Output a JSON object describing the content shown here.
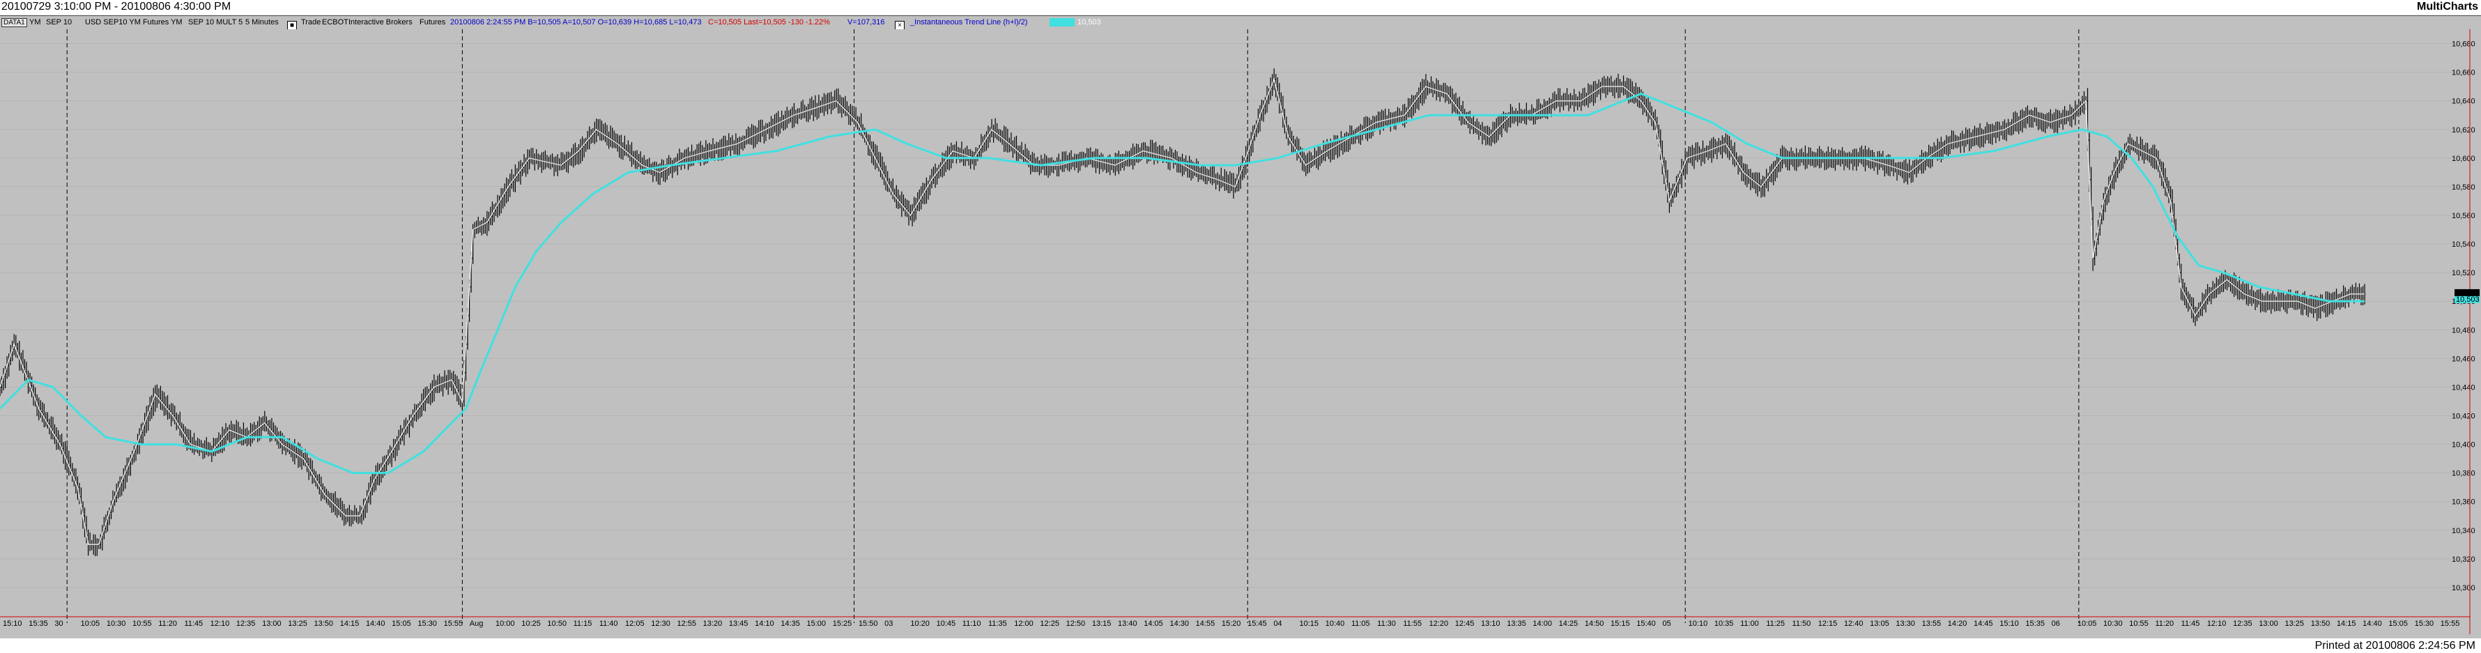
{
  "window": {
    "title": "20100729 3:10:00 PM - 20100806 4:30:00 PM",
    "brand": "MultiCharts",
    "printed": "Printed at 20100806 2:24:56 PM"
  },
  "infobar": {
    "symbol_box": "DATA1",
    "sym": "YM",
    "contract": "SEP 10",
    "desc": "USD SEP10 YM Futures YM",
    "contract2": "SEP 10 MULT 5",
    "interval": "5 Minutes",
    "type": "Trade",
    "exchange": "ECBOT",
    "broker": "Interactive Brokers",
    "category": "Futures",
    "quote": "20100806 2:24:55 PM  B=10,505  A=10,507  O=10,639  H=10,685  L=10,473",
    "change": "C=10,505  Last=10,505  -130  -1.22%",
    "volume": "V=107,316",
    "indicator": "_Instantaneous Trend Line (h+l)/2)",
    "indicator_value": "10,503",
    "colors": {
      "blue": "#0000c8",
      "red": "#d40000",
      "cyan": "#40e0e0"
    }
  },
  "price_labels": {
    "last": "10,504",
    "indicator": "10,503"
  },
  "chart_data": {
    "type": "line",
    "title": "",
    "series": [
      {
        "name": "YM",
        "style": "ohlc-bars",
        "color": "#000000",
        "anchors": [
          [
            0,
            10440
          ],
          [
            8,
            10470
          ],
          [
            22,
            10425
          ],
          [
            34,
            10400
          ],
          [
            44,
            10370
          ],
          [
            50,
            10330
          ],
          [
            56,
            10330
          ],
          [
            64,
            10360
          ],
          [
            76,
            10395
          ],
          [
            88,
            10435
          ],
          [
            98,
            10420
          ],
          [
            108,
            10400
          ],
          [
            120,
            10395
          ],
          [
            130,
            10410
          ],
          [
            140,
            10405
          ],
          [
            150,
            10415
          ],
          [
            160,
            10400
          ],
          [
            172,
            10390
          ],
          [
            184,
            10365
          ],
          [
            196,
            10350
          ],
          [
            204,
            10350
          ],
          [
            212,
            10375
          ],
          [
            222,
            10395
          ],
          [
            234,
            10420
          ],
          [
            246,
            10440
          ],
          [
            256,
            10445
          ],
          [
            262,
            10430
          ],
          [
            268,
            10550
          ],
          [
            276,
            10555
          ],
          [
            288,
            10580
          ],
          [
            300,
            10600
          ],
          [
            318,
            10595
          ],
          [
            328,
            10605
          ],
          [
            338,
            10620
          ],
          [
            350,
            10610
          ],
          [
            364,
            10595
          ],
          [
            374,
            10590
          ],
          [
            388,
            10600
          ],
          [
            402,
            10605
          ],
          [
            418,
            10610
          ],
          [
            434,
            10620
          ],
          [
            450,
            10630
          ],
          [
            462,
            10635
          ],
          [
            474,
            10640
          ],
          [
            486,
            10625
          ],
          [
            496,
            10600
          ],
          [
            506,
            10575
          ],
          [
            516,
            10560
          ],
          [
            528,
            10585
          ],
          [
            540,
            10605
          ],
          [
            552,
            10600
          ],
          [
            562,
            10620
          ],
          [
            572,
            10610
          ],
          [
            586,
            10595
          ],
          [
            600,
            10595
          ],
          [
            616,
            10600
          ],
          [
            632,
            10595
          ],
          [
            648,
            10605
          ],
          [
            664,
            10600
          ],
          [
            678,
            10590
          ],
          [
            690,
            10585
          ],
          [
            700,
            10580
          ],
          [
            706,
            10600
          ],
          [
            714,
            10630
          ],
          [
            722,
            10655
          ],
          [
            730,
            10615
          ],
          [
            740,
            10595
          ],
          [
            752,
            10605
          ],
          [
            766,
            10615
          ],
          [
            780,
            10625
          ],
          [
            796,
            10630
          ],
          [
            808,
            10650
          ],
          [
            820,
            10645
          ],
          [
            832,
            10625
          ],
          [
            844,
            10615
          ],
          [
            856,
            10630
          ],
          [
            868,
            10630
          ],
          [
            882,
            10640
          ],
          [
            896,
            10640
          ],
          [
            908,
            10650
          ],
          [
            920,
            10650
          ],
          [
            930,
            10640
          ],
          [
            938,
            10625
          ],
          [
            946,
            10570
          ],
          [
            956,
            10600
          ],
          [
            968,
            10605
          ],
          [
            978,
            10610
          ],
          [
            988,
            10590
          ],
          [
            998,
            10580
          ],
          [
            1010,
            10600
          ],
          [
            1024,
            10600
          ],
          [
            1040,
            10600
          ],
          [
            1056,
            10600
          ],
          [
            1070,
            10595
          ],
          [
            1082,
            10590
          ],
          [
            1092,
            10600
          ],
          [
            1104,
            10610
          ],
          [
            1120,
            10615
          ],
          [
            1136,
            10620
          ],
          [
            1150,
            10630
          ],
          [
            1162,
            10625
          ],
          [
            1174,
            10630
          ],
          [
            1182,
            10640
          ],
          [
            1186,
            10530
          ],
          [
            1192,
            10570
          ],
          [
            1198,
            10590
          ],
          [
            1206,
            10610
          ],
          [
            1214,
            10605
          ],
          [
            1222,
            10600
          ],
          [
            1230,
            10570
          ],
          [
            1236,
            10510
          ],
          [
            1244,
            10490
          ],
          [
            1252,
            10505
          ],
          [
            1262,
            10515
          ],
          [
            1272,
            10505
          ],
          [
            1282,
            10500
          ],
          [
            1292,
            10500
          ],
          [
            1302,
            10500
          ],
          [
            1312,
            10495
          ],
          [
            1322,
            10500
          ],
          [
            1332,
            10505
          ],
          [
            1340,
            10505
          ]
        ]
      },
      {
        "name": "_Instantaneous Trend Line (h+l)/2)",
        "style": "line",
        "color": "#40e0e0",
        "anchors": [
          [
            0,
            10425
          ],
          [
            16,
            10445
          ],
          [
            30,
            10440
          ],
          [
            46,
            10420
          ],
          [
            60,
            10405
          ],
          [
            80,
            10400
          ],
          [
            100,
            10400
          ],
          [
            120,
            10395
          ],
          [
            140,
            10405
          ],
          [
            160,
            10405
          ],
          [
            180,
            10390
          ],
          [
            200,
            10380
          ],
          [
            220,
            10380
          ],
          [
            240,
            10395
          ],
          [
            256,
            10415
          ],
          [
            264,
            10425
          ],
          [
            272,
            10450
          ],
          [
            282,
            10480
          ],
          [
            292,
            10510
          ],
          [
            304,
            10535
          ],
          [
            318,
            10555
          ],
          [
            336,
            10575
          ],
          [
            356,
            10590
          ],
          [
            380,
            10595
          ],
          [
            410,
            10600
          ],
          [
            440,
            10605
          ],
          [
            470,
            10615
          ],
          [
            496,
            10620
          ],
          [
            514,
            10610
          ],
          [
            536,
            10600
          ],
          [
            560,
            10600
          ],
          [
            590,
            10595
          ],
          [
            620,
            10600
          ],
          [
            650,
            10600
          ],
          [
            680,
            10595
          ],
          [
            700,
            10595
          ],
          [
            724,
            10600
          ],
          [
            750,
            10610
          ],
          [
            780,
            10620
          ],
          [
            810,
            10630
          ],
          [
            840,
            10630
          ],
          [
            870,
            10630
          ],
          [
            900,
            10630
          ],
          [
            930,
            10645
          ],
          [
            950,
            10635
          ],
          [
            970,
            10625
          ],
          [
            990,
            10610
          ],
          [
            1010,
            10600
          ],
          [
            1040,
            10600
          ],
          [
            1070,
            10600
          ],
          [
            1100,
            10600
          ],
          [
            1130,
            10605
          ],
          [
            1160,
            10615
          ],
          [
            1180,
            10620
          ],
          [
            1194,
            10615
          ],
          [
            1208,
            10600
          ],
          [
            1220,
            10580
          ],
          [
            1234,
            10545
          ],
          [
            1246,
            10525
          ],
          [
            1260,
            10520
          ],
          [
            1280,
            10510
          ],
          [
            1300,
            10505
          ],
          [
            1320,
            10500
          ],
          [
            1340,
            10500
          ]
        ]
      }
    ],
    "x_total": 1400,
    "ylim": [
      10280,
      10690
    ],
    "y_ticks": [
      "10,680",
      "10,660",
      "10,640",
      "10,620",
      "10,600",
      "10,580",
      "10,560",
      "10,540",
      "10,520",
      "10,500",
      "10,480",
      "10,460",
      "10,440",
      "10,420",
      "10,400",
      "10,380",
      "10,360",
      "10,340",
      "10,320",
      "10,300"
    ],
    "y_tick_values": [
      10680,
      10660,
      10640,
      10620,
      10600,
      10580,
      10560,
      10540,
      10520,
      10500,
      10480,
      10460,
      10440,
      10420,
      10400,
      10380,
      10360,
      10340,
      10320,
      10300
    ],
    "session_breaks": [
      38,
      262,
      484,
      707,
      955,
      1178
    ],
    "x_labels": [
      "15:10",
      "15:35",
      "30",
      "10:05",
      "10:30",
      "10:55",
      "11:20",
      "11:45",
      "12:10",
      "12:35",
      "13:00",
      "13:25",
      "13:50",
      "14:15",
      "14:40",
      "15:05",
      "15:30",
      "15:55",
      "Aug",
      "10:00",
      "10:25",
      "10:50",
      "11:15",
      "11:40",
      "12:05",
      "12:30",
      "12:55",
      "13:20",
      "13:45",
      "14:10",
      "14:35",
      "15:00",
      "15:25",
      "15:50",
      "03",
      "10:20",
      "10:45",
      "11:10",
      "11:35",
      "12:00",
      "12:25",
      "12:50",
      "13:15",
      "13:40",
      "14:05",
      "14:30",
      "14:55",
      "15:20",
      "15:45",
      "04",
      "10:15",
      "10:40",
      "11:05",
      "11:30",
      "11:55",
      "12:20",
      "12:45",
      "13:10",
      "13:35",
      "14:00",
      "14:25",
      "14:50",
      "15:15",
      "15:40",
      "05",
      "10:10",
      "10:35",
      "11:00",
      "11:25",
      "11:50",
      "12:15",
      "12:40",
      "13:05",
      "13:30",
      "13:55",
      "14:20",
      "14:45",
      "15:10",
      "15:35",
      "06",
      "10:05",
      "10:30",
      "10:55",
      "11:20",
      "11:45",
      "12:10",
      "12:35",
      "13:00",
      "13:25",
      "13:50",
      "14:15",
      "14:40",
      "15:05",
      "15:30",
      "15:55"
    ],
    "grid": true,
    "legend": "none"
  }
}
